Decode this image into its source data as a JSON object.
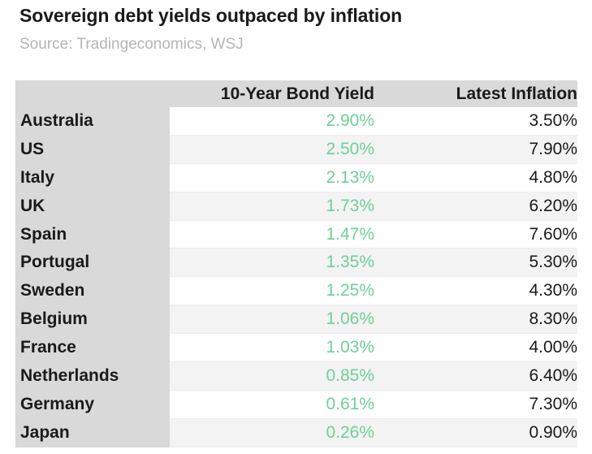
{
  "header": {
    "title": "Sovereign debt yields outpaced by inflation",
    "source": "Source: Tradingeconomics, WSJ"
  },
  "colors": {
    "yield_text": "#6fcf97",
    "header_bg": "#d9d9d9",
    "stripe": "#f3f3f3"
  },
  "chart_data": {
    "type": "table",
    "title": "Sovereign debt yields outpaced by inflation",
    "columns": [
      "",
      "10-Year Bond Yield",
      "Latest Inflation"
    ],
    "rows": [
      {
        "country": "Australia",
        "yield": "2.90%",
        "inflation": "3.50%"
      },
      {
        "country": "US",
        "yield": "2.50%",
        "inflation": "7.90%"
      },
      {
        "country": "Italy",
        "yield": "2.13%",
        "inflation": "4.80%"
      },
      {
        "country": "UK",
        "yield": "1.73%",
        "inflation": "6.20%"
      },
      {
        "country": "Spain",
        "yield": "1.47%",
        "inflation": "7.60%"
      },
      {
        "country": "Portugal",
        "yield": "1.35%",
        "inflation": "5.30%"
      },
      {
        "country": "Sweden",
        "yield": "1.25%",
        "inflation": "4.30%"
      },
      {
        "country": "Belgium",
        "yield": "1.06%",
        "inflation": "8.30%"
      },
      {
        "country": "France",
        "yield": "1.03%",
        "inflation": "4.00%"
      },
      {
        "country": "Netherlands",
        "yield": "0.85%",
        "inflation": "6.40%"
      },
      {
        "country": "Germany",
        "yield": "0.61%",
        "inflation": "7.30%"
      },
      {
        "country": "Japan",
        "yield": "0.26%",
        "inflation": "0.90%"
      }
    ]
  }
}
